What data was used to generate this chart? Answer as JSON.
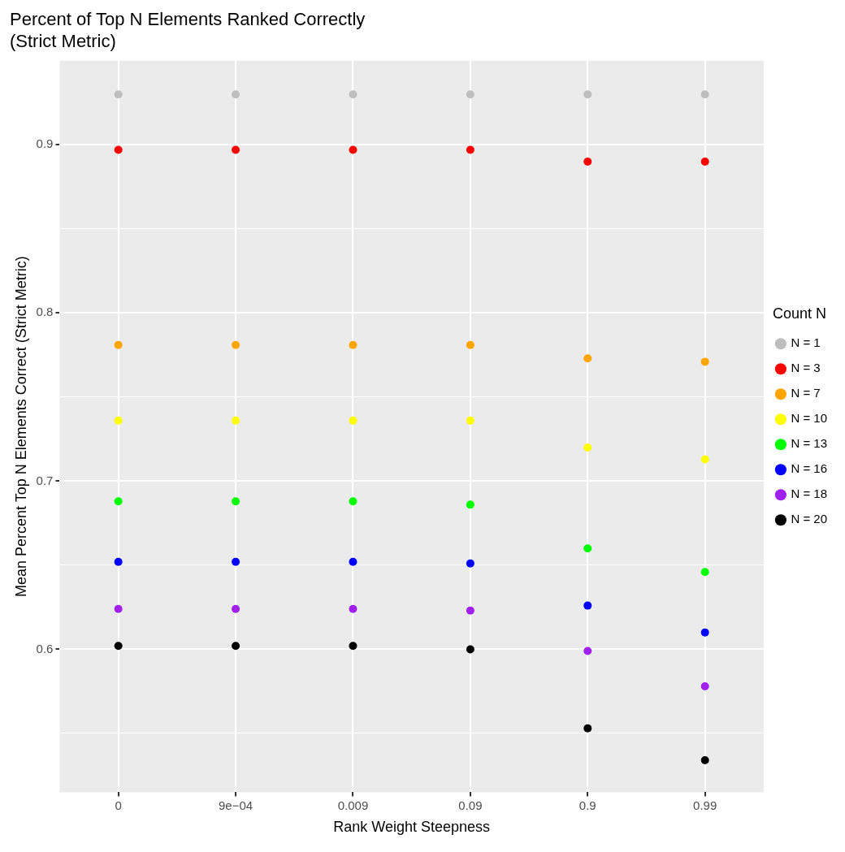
{
  "chart_data": {
    "type": "scatter",
    "title": "Percent of Top N Elements Ranked Correctly\n(Strict Metric)",
    "xlabel": "Rank Weight Steepness",
    "ylabel": "Mean Percent Top N Elements Correct (Strict Metric)",
    "legend_title": "Count N",
    "categories": [
      "0",
      "9e−04",
      "0.009",
      "0.09",
      "0.9",
      "0.99"
    ],
    "series": [
      {
        "name": "N = 1",
        "color": "#bebebe",
        "values": [
          0.93,
          0.93,
          0.93,
          0.93,
          0.93,
          0.93
        ]
      },
      {
        "name": "N = 3",
        "color": "#ff0000",
        "values": [
          0.897,
          0.897,
          0.897,
          0.897,
          0.89,
          0.89
        ]
      },
      {
        "name": "N = 7",
        "color": "#ffa500",
        "values": [
          0.781,
          0.781,
          0.781,
          0.781,
          0.773,
          0.771
        ]
      },
      {
        "name": "N = 10",
        "color": "#ffff00",
        "values": [
          0.736,
          0.736,
          0.736,
          0.736,
          0.72,
          0.713
        ]
      },
      {
        "name": "N = 13",
        "color": "#00ff00",
        "values": [
          0.688,
          0.688,
          0.688,
          0.686,
          0.66,
          0.646
        ]
      },
      {
        "name": "N = 16",
        "color": "#0000ff",
        "values": [
          0.652,
          0.652,
          0.652,
          0.651,
          0.626,
          0.61
        ]
      },
      {
        "name": "N = 18",
        "color": "#a020f0",
        "values": [
          0.624,
          0.624,
          0.624,
          0.623,
          0.599,
          0.578
        ]
      },
      {
        "name": "N = 20",
        "color": "#000000",
        "values": [
          0.602,
          0.602,
          0.602,
          0.6,
          0.553,
          0.534
        ]
      }
    ],
    "ylim": [
      0.515,
      0.95
    ],
    "yticks": [
      {
        "value": 0.55,
        "label": null
      },
      0.6,
      {
        "value": 0.65,
        "label": null
      },
      0.7,
      {
        "value": 0.75,
        "label": null
      },
      0.8,
      {
        "value": 0.85,
        "label": null
      },
      0.9
    ],
    "grid": true,
    "legend": "right",
    "marker": "circle"
  }
}
